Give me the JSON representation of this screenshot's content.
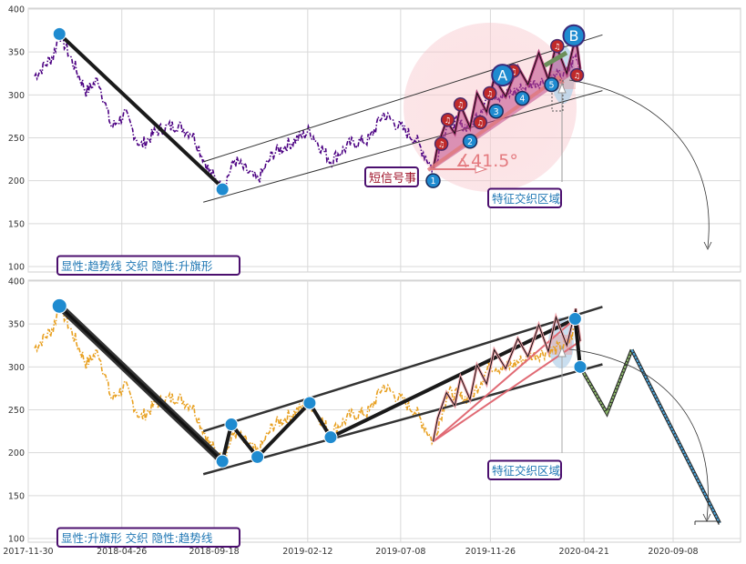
{
  "chart_data": [
    {
      "type": "line",
      "panel": "top",
      "ylim": [
        95,
        400
      ],
      "y_ticks": [
        100,
        150,
        200,
        250,
        300,
        350,
        400
      ],
      "grid": true,
      "series_color": "#4b0082",
      "trendline": {
        "x": [
          "2018-01-18",
          "2018-10-01"
        ],
        "y": [
          371,
          192
        ]
      },
      "channel": {
        "upper": {
          "x": [
            "2018-09-01",
            "2020-05-20"
          ],
          "y": [
            222,
            370
          ]
        },
        "lower": {
          "x": [
            "2018-09-01",
            "2020-05-20"
          ],
          "y": [
            175,
            305
          ]
        }
      },
      "zigzag": {
        "x": [
          "2019-08-28",
          "2019-09-04",
          "2019-09-18",
          "2019-10-01",
          "2019-10-10",
          "2019-10-25",
          "2019-11-05",
          "2019-11-20",
          "2019-12-02",
          "2019-12-20",
          "2020-01-08",
          "2020-01-24",
          "2020-02-10",
          "2020-02-25",
          "2020-03-08",
          "2020-03-25",
          "2020-04-08",
          "2020-04-15"
        ],
        "y": [
          213,
          240,
          270,
          255,
          288,
          262,
          302,
          280,
          320,
          298,
          333,
          312,
          349,
          318,
          358,
          325,
          368,
          330
        ]
      },
      "markers_blue": [
        {
          "x": "2018-01-18",
          "y": 371
        },
        {
          "x": "2018-10-01",
          "y": 190
        }
      ],
      "markers_numbered": [
        {
          "label": "1",
          "x": "2019-08-28",
          "y": 200
        },
        {
          "label": "2",
          "x": "2019-10-25",
          "y": 246
        },
        {
          "label": "3",
          "x": "2019-12-05",
          "y": 281
        },
        {
          "label": "4",
          "x": "2020-01-15",
          "y": 296
        },
        {
          "label": "5",
          "x": "2020-03-01",
          "y": 312
        }
      ],
      "markers_note": [
        {
          "label": "♫",
          "x": "2019-09-10",
          "y": 243
        },
        {
          "label": "♫",
          "x": "2019-09-20",
          "y": 271
        },
        {
          "label": "♫",
          "x": "2019-10-10",
          "y": 289
        },
        {
          "label": "♫",
          "x": "2019-11-10",
          "y": 268
        },
        {
          "label": "♫",
          "x": "2019-11-25",
          "y": 302
        },
        {
          "label": "♫",
          "x": "2020-01-01",
          "y": 328
        },
        {
          "label": "♫",
          "x": "2020-03-10",
          "y": 357
        },
        {
          "label": "♫",
          "x": "2020-04-10",
          "y": 323
        }
      ],
      "markers_letter": [
        {
          "label": "A",
          "x": "2019-12-15",
          "y": 323
        },
        {
          "label": "B",
          "x": "2020-04-05",
          "y": 369
        }
      ],
      "angle_label": "41.5°",
      "annotations": [
        {
          "text": "短信号事",
          "x": "2019-07-01",
          "y": 201,
          "color": "#a0162b"
        },
        {
          "text": "特征交织区域",
          "x": "2020-02-20",
          "y": 178,
          "color": "#1f77b4"
        },
        {
          "text": "显性:趋势线 交织 隐性:升旗形",
          "x": "2017-12-15",
          "y": 102,
          "color": "#1f77b4"
        }
      ]
    },
    {
      "type": "line",
      "panel": "bottom",
      "ylim": [
        95,
        400
      ],
      "y_ticks": [
        100,
        150,
        200,
        250,
        300,
        350,
        400
      ],
      "x_ticks": [
        "2017-11-30",
        "2018-04-26",
        "2018-09-18",
        "2019-02-12",
        "2019-07-08",
        "2019-11-26",
        "2020-04-21",
        "2020-09-08"
      ],
      "grid": true,
      "series_color": "#e8a020",
      "trendline": {
        "x": [
          "2018-01-18",
          "2018-10-01"
        ],
        "y": [
          371,
          190
        ]
      },
      "channel": {
        "upper": {
          "x": [
            "2018-09-01",
            "2020-05-20"
          ],
          "y": [
            225,
            370
          ]
        },
        "lower": {
          "x": [
            "2018-09-01",
            "2020-05-20"
          ],
          "y": [
            175,
            303
          ]
        }
      },
      "w_path": {
        "x": [
          "2018-10-01",
          "2018-10-15",
          "2018-11-25",
          "2019-02-15",
          "2019-03-20",
          "2020-04-07"
        ],
        "y": [
          190,
          233,
          195,
          258,
          218,
          356
        ]
      },
      "red_wedge": {
        "upper": {
          "x": [
            "2019-08-28",
            "2020-04-07"
          ],
          "y": [
            213,
            356
          ]
        },
        "lower": {
          "x": [
            "2019-08-28",
            "2020-04-15"
          ],
          "y": [
            213,
            330
          ]
        }
      },
      "forecast_green": {
        "x": [
          "2020-04-15",
          "2020-05-27",
          "2020-07-05"
        ],
        "y": [
          300,
          246,
          320
        ]
      },
      "forecast_blue": {
        "x": [
          "2020-07-05",
          "2020-11-20"
        ],
        "y": [
          320,
          118
        ]
      },
      "markers_blue": [
        {
          "x": "2018-01-18",
          "y": 371
        },
        {
          "x": "2018-10-01",
          "y": 190
        },
        {
          "x": "2018-10-15",
          "y": 233
        },
        {
          "x": "2018-11-25",
          "y": 195
        },
        {
          "x": "2019-02-15",
          "y": 258
        },
        {
          "x": "2019-03-20",
          "y": 218
        },
        {
          "x": "2020-04-07",
          "y": 356
        },
        {
          "x": "2020-04-15",
          "y": 300
        }
      ],
      "annotations": [
        {
          "text": "特征交织区域",
          "x": "2020-02-20",
          "y": 173,
          "color": "#1f77b4"
        },
        {
          "text": "显性:升旗形 交织 隐性:趋势线",
          "x": "2017-12-15",
          "y": 102,
          "color": "#1f77b4"
        }
      ]
    }
  ]
}
